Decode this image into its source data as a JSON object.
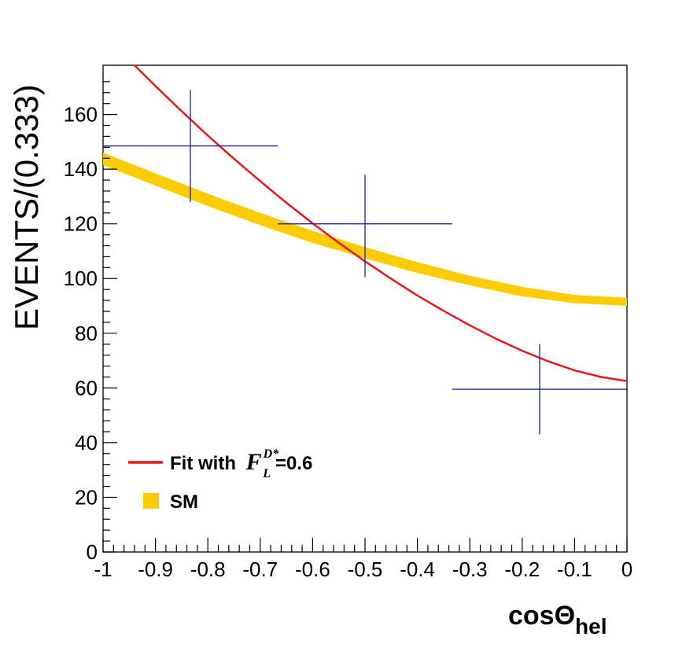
{
  "chart_data": {
    "type": "scatter",
    "xlabel": "cosΘ",
    "xlabel_subscript": "hel",
    "ylabel": "EVENTS/(0.333)",
    "xlim": [
      -1,
      0
    ],
    "ylim": [
      0,
      178
    ],
    "x_ticks": [
      "-1",
      "-0.9",
      "-0.8",
      "-0.7",
      "-0.6",
      "-0.5",
      "-0.4",
      "-0.3",
      "-0.2",
      "-0.1",
      "0"
    ],
    "y_ticks": [
      "0",
      "20",
      "40",
      "60",
      "80",
      "100",
      "120",
      "140",
      "160"
    ],
    "grid": false,
    "series": [
      {
        "kind": "points",
        "color": "#1f1fa8",
        "points": [
          {
            "x": -0.8333,
            "y": 148.5,
            "xerr": 0.1667,
            "ylo": 128,
            "yhi": 169
          },
          {
            "x": -0.5,
            "y": 120,
            "xerr": 0.1667,
            "ylo": 100.5,
            "yhi": 138
          },
          {
            "x": -0.1667,
            "y": 59.5,
            "xerr": 0.1667,
            "ylo": 43,
            "yhi": 76
          }
        ]
      },
      {
        "kind": "curve",
        "name": "Fit with",
        "color": "#e8161b",
        "x": [
          -0.94,
          -0.9,
          -0.85,
          -0.8,
          -0.75,
          -0.7,
          -0.65,
          -0.6,
          -0.55,
          -0.5,
          -0.45,
          -0.4,
          -0.35,
          -0.3,
          -0.25,
          -0.2,
          -0.15,
          -0.1,
          -0.05,
          0.0
        ],
        "y": [
          178,
          170.4,
          161.2,
          152.3,
          143.8,
          135.6,
          127.7,
          120.2,
          113.1,
          106.3,
          99.9,
          93.8,
          88.2,
          82.9,
          78.0,
          73.6,
          69.7,
          66.4,
          64.0,
          62.5
        ]
      },
      {
        "kind": "band",
        "name": "SM",
        "color": "#fccc00",
        "x": [
          -1.0,
          -0.9,
          -0.8,
          -0.7,
          -0.6,
          -0.5,
          -0.4,
          -0.3,
          -0.2,
          -0.1,
          0.0
        ],
        "y_lo": [
          141.5,
          134,
          126.5,
          119.5,
          113,
          107.5,
          102,
          97.5,
          93.5,
          91,
          90
        ],
        "y_hi": [
          146,
          138.5,
          131,
          124,
          117.5,
          111.5,
          106,
          101,
          97,
          94,
          93
        ]
      }
    ],
    "legend": {
      "position": "bottom-left",
      "entries": [
        {
          "label": "Fit with",
          "math": "F",
          "sup": "D*",
          "sub": "L",
          "value": "=0.6",
          "color": "#e8161b",
          "style": "line"
        },
        {
          "label": "SM",
          "color": "#fccc00",
          "style": "box"
        }
      ]
    }
  }
}
